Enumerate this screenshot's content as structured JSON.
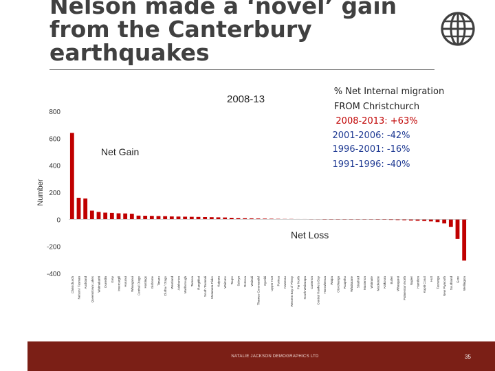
{
  "slide": {
    "title_line1": "Nelson made a  ‘novel’  gain",
    "title_line2": "from the Canterbury",
    "title_line3": "earthquakes",
    "footer_text": "NATALIE JACKSON DEMOGRAPHICS LTD",
    "page_number": "35"
  },
  "chart_data": {
    "type": "bar",
    "title": "2008-13",
    "ylabel": "Number",
    "ylim": [
      -400,
      800
    ],
    "yticks": [
      -400,
      -200,
      0,
      200,
      400,
      600,
      800
    ],
    "bar_color": "#c00000",
    "annotations": {
      "net_gain": "Net Gain",
      "net_loss": "Net Loss",
      "migration_heading_1": "% Net Internal migration",
      "migration_heading_2": "FROM Christchurch",
      "period_2008_2013": "2008-2013: +63%",
      "period_2001_2006": "2001-2006: -42%",
      "period_1996_2001": "1996-2001: -16%",
      "period_1991_1996": "1991-1996: -40%",
      "highlight_color": "#c00000",
      "secondary_color": "#1f3a93"
    },
    "categories": [
      "Christchurch",
      "Nelson / Tasman",
      "Auckland",
      "Queenstown Lakes",
      "Waimakariri",
      "Dunedin",
      "Grey",
      "Invercargill",
      "Hurunui",
      "Whanganui",
      "Central Otago",
      "Hastings",
      "Gisborne",
      "Timaru",
      "Clutha / Otago",
      "Westland",
      "Ashburton",
      "Marlborough",
      "Tararua",
      "Rangitikei",
      "South Taranaki",
      "Matamata-Piako",
      "Kaipara",
      "Waitomo",
      "Taupo",
      "Selwyn",
      "Rotorua",
      "Waitaki",
      "Thames-Coromandel",
      "Opotiki",
      "Upper Hutt",
      "Porirua",
      "Kawerau",
      "Western Bay of Plenty",
      "Far North",
      "South Wairarapa",
      "Carterton",
      "Central Hawke's Bay",
      "Horowhenua",
      "Waipa",
      "Otorohanga",
      "Ruapehu",
      "Whakatane",
      "Stratford",
      "Masterton",
      "Waimate",
      "Mackenzie",
      "Kaikoura",
      "Buller",
      "Whangarei",
      "Palmerston North",
      "Napier",
      "Hamilton",
      "Kapiti Coast",
      "Hutt",
      "Tauranga",
      "New Plymouth",
      "Southland",
      "Gore",
      "Wellington"
    ],
    "values": [
      640,
      160,
      155,
      65,
      55,
      50,
      48,
      45,
      44,
      42,
      28,
      27,
      26,
      25,
      24,
      22,
      21,
      20,
      19,
      18,
      17,
      16,
      15,
      14,
      12,
      10,
      9,
      8,
      7,
      6,
      5,
      4,
      3,
      3,
      2,
      2,
      1,
      1,
      0,
      0,
      0,
      0,
      -1,
      -1,
      -2,
      -2,
      -3,
      -3,
      -4,
      -5,
      -6,
      -8,
      -10,
      -12,
      -15,
      -20,
      -30,
      -55,
      -145,
      -305
    ]
  }
}
